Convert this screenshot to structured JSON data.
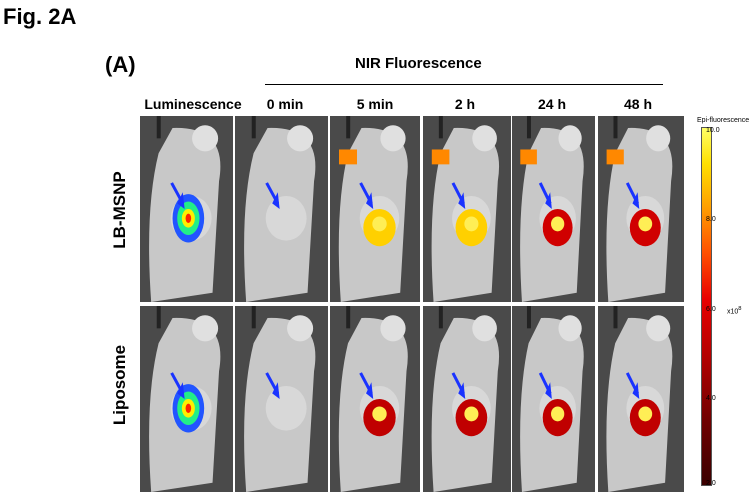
{
  "figure_title": "Fig. 2A",
  "panel_label": "(A)",
  "nir_header": "NIR Fluorescence",
  "columns": [
    "Luminescence",
    "0 min",
    "5 min",
    "2 h",
    "24 h",
    "48 h"
  ],
  "rows": [
    "LB-MSNP",
    "Liposome"
  ],
  "colorbar": {
    "title": "Epi-fluorescence",
    "ticks": [
      "10.0",
      "8.0",
      "6.0",
      "4.0",
      "2.0"
    ],
    "exponent": "x10",
    "exponent_power": "8"
  }
}
